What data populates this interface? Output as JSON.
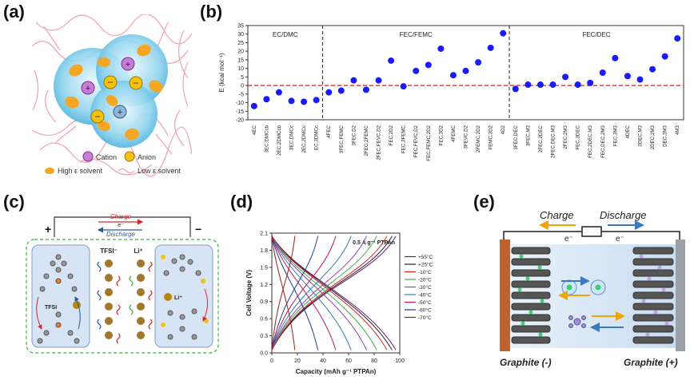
{
  "panel_labels": {
    "a": "(a)",
    "b": "(b)",
    "c": "(c)",
    "d": "(d)",
    "e": "(e)"
  },
  "panel_a": {
    "ion_signs": [
      "+",
      "−",
      "+",
      "−",
      "+",
      "−"
    ],
    "legend_cation": "Cation",
    "legend_anion": "Anion",
    "legend_high": "High ε solvent",
    "legend_low": "Low ε solvent"
  },
  "panel_c": {
    "plus": "+",
    "minus": "−",
    "charge": "Charge",
    "discharge": "Discharge",
    "electron": "e⁻",
    "tfsi_top": "TFSI⁻",
    "li_top": "Li⁺",
    "tfsi_mol": "TFSI",
    "li_mol": "Li⁺"
  },
  "panel_e": {
    "charge": "Charge",
    "discharge": "Discharge",
    "e_left": "e⁻",
    "e_right": "e⁻",
    "anode": "Graphite (-)",
    "cathode": "Graphite (+)"
  },
  "chart_data": [
    {
      "type": "scatter",
      "ylabel": "E (kcal mol⁻¹)",
      "ylim": [
        -20,
        35
      ],
      "yticks": [
        "35",
        "30",
        "25",
        "20",
        "15",
        "10",
        "5",
        "0",
        "-5",
        "-10",
        "-15",
        "-20"
      ],
      "reference_line": 0,
      "groups": [
        {
          "name": "EC/DMC",
          "categories": [
            "4EC",
            "3EC,DMCcb",
            "2EC,2DMCcb",
            "3EC,DMCc",
            "2EC,2DMCc",
            "EC,3DMCc"
          ],
          "values": [
            -12,
            -8,
            -4,
            -9,
            -9.5,
            -8.5
          ]
        },
        {
          "name": "FEC/FEMC",
          "categories": [
            "4FEC",
            "3FEC,FEMC",
            "3FEC,D2",
            "2FEC,2FEMC",
            "2FEC,FEVC,D2",
            "FEC,2D2",
            "FEC,3FEMC",
            "FEC,FEVC,D2",
            "FEC,FEMC,2D2",
            "FEC,3D2",
            "4FEMC",
            "3FEVC,D2",
            "2FEMC,2D2",
            "FEMC,3D2",
            "4D2"
          ],
          "values": [
            -4,
            -3,
            3,
            -2.5,
            3,
            14.5,
            -0.5,
            8.5,
            12,
            21.5,
            6,
            8.5,
            13.5,
            22,
            30.5
          ]
        },
        {
          "name": "FEC/DEC",
          "categories": [
            "3FEC,DEC",
            "3FEC,M3",
            "2FEC,2DEC",
            "2FEC,DEC,M3",
            "2FEC,2M3",
            "FEC,3DEC",
            "FEC,2DEC,M3",
            "FEC,DEC,2M3",
            "FEC,3M3",
            "4DEC",
            "3DEC,M3",
            "2DEC,2M3",
            "DEC,3M3",
            "4M3"
          ],
          "values": [
            -2,
            0.5,
            0.5,
            0.5,
            5,
            0.5,
            1.5,
            7.5,
            16,
            5.5,
            3.5,
            9.5,
            17,
            27.5
          ]
        }
      ]
    },
    {
      "type": "line",
      "xlabel": "Capacity (mAh g⁻¹ PTPAn)",
      "ylabel": "Cell Voltage (V)",
      "annotation": "0.5 A g⁻¹ PTPAn",
      "xlim": [
        0,
        100
      ],
      "ylim": [
        0,
        2.1
      ],
      "xticks": [
        "0",
        "20",
        "40",
        "60",
        "80",
        "100"
      ],
      "yticks": [
        "0.0",
        "0.3",
        "0.6",
        "0.9",
        "1.2",
        "1.5",
        "1.8",
        "2.1"
      ],
      "series": [
        {
          "name": "+55°C",
          "color": "#6a1b7a",
          "capacity": 97
        },
        {
          "name": "+25°C",
          "color": "#222222",
          "capacity": 94
        },
        {
          "name": "-10°C",
          "color": "#d62828",
          "capacity": 90
        },
        {
          "name": "-20°C",
          "color": "#3cb043",
          "capacity": 82
        },
        {
          "name": "-30°C",
          "color": "#8e44ad",
          "capacity": 74
        },
        {
          "name": "-40°C",
          "color": "#2c7fb8",
          "capacity": 62
        },
        {
          "name": "-50°C",
          "color": "#c2185b",
          "capacity": 50
        },
        {
          "name": "-60°C",
          "color": "#1f3a93",
          "capacity": 36
        },
        {
          "name": "-70°C",
          "color": "#9c1c1c",
          "capacity": 18
        }
      ]
    }
  ]
}
